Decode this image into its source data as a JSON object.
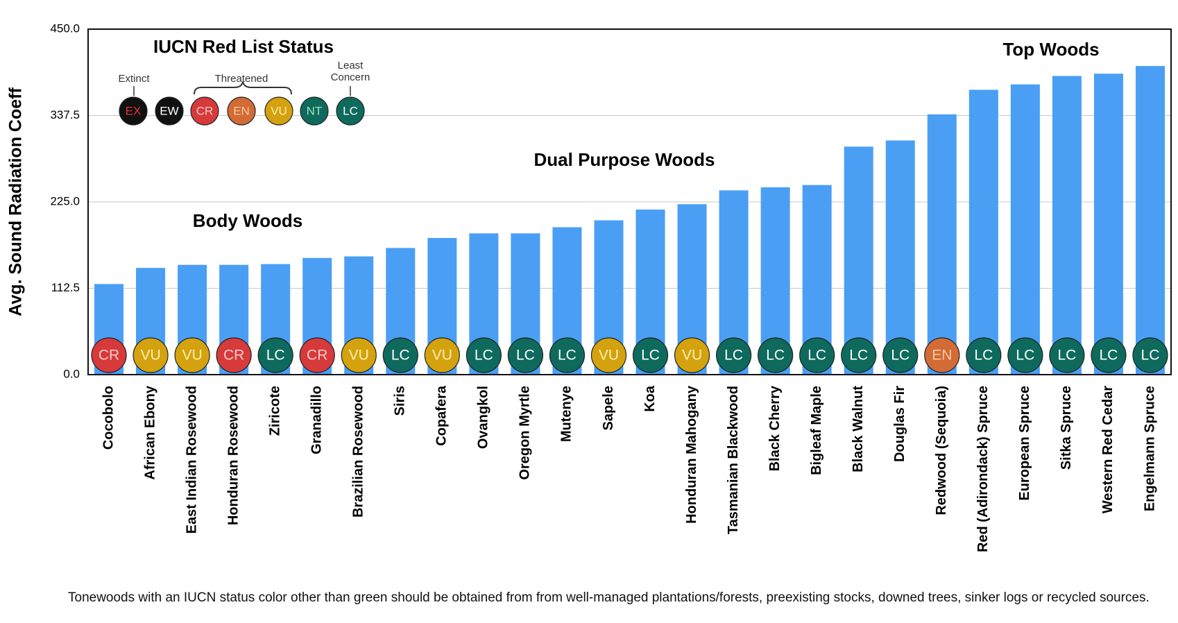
{
  "chart_data": {
    "type": "bar",
    "ylabel": "Avg. Sound Radiation Coeff",
    "categories": [
      "Cocobolo",
      "African Ebony",
      "East Indian Rosewood",
      "Honduran Rosewood",
      "Ziricote",
      "Granadillo",
      "Brazilian Rosewood",
      "Siris",
      "Copafera",
      "Ovangkol",
      "Oregon Myrtle",
      "Mutenye",
      "Sapele",
      "Koa",
      "Honduran Mahogany",
      "Tasmanian Blackwood",
      "Black Cherry",
      "Bigleaf Maple",
      "Black Walnut",
      "Douglas Fir",
      "Redwood (Sequoia)",
      "Red (Adirondack) Spruce",
      "European Spruce",
      "Sitka Spruce",
      "Western Red Cedar",
      "Engelmann Spruce"
    ],
    "values": [
      118,
      139,
      143,
      143,
      144,
      152,
      154,
      165,
      178,
      184,
      184,
      192,
      201,
      215,
      222,
      240,
      244,
      247,
      297,
      305,
      339,
      371,
      378,
      389,
      392,
      402
    ],
    "statuses": [
      "CR",
      "VU",
      "VU",
      "CR",
      "LC",
      "CR",
      "VU",
      "LC",
      "VU",
      "LC",
      "LC",
      "LC",
      "VU",
      "LC",
      "VU",
      "LC",
      "LC",
      "LC",
      "LC",
      "LC",
      "EN",
      "LC",
      "LC",
      "LC",
      "LC",
      "LC"
    ],
    "color": "#4a9ff5",
    "ylim": [
      0,
      450
    ],
    "yticks": [
      {
        "value": 0,
        "label": "0.0"
      },
      {
        "value": 112.5,
        "label": "112.5"
      },
      {
        "value": 225,
        "label": "225.0"
      },
      {
        "value": 337.5,
        "label": "337.5"
      },
      {
        "value": 450,
        "label": "450.0"
      }
    ],
    "grid": true,
    "status_colors": {
      "EX": {
        "fill": "#111111",
        "text": "#e0302e"
      },
      "EW": {
        "fill": "#111111",
        "text": "#ffffff"
      },
      "CR": {
        "fill": "#d63a3a",
        "text": "#f7c9c9"
      },
      "EN": {
        "fill": "#d26b36",
        "text": "#f7c9a0"
      },
      "VU": {
        "fill": "#d4a20f",
        "text": "#fbf0b0"
      },
      "NT": {
        "fill": "#0e6a5c",
        "text": "#9fe3b8"
      },
      "LC": {
        "fill": "#0e6a5c",
        "text": "#ffffff"
      }
    },
    "legend": {
      "title": "IUCN Red List Status",
      "groups": [
        "Extinct",
        "Threatened",
        "Least Concern"
      ],
      "codes": [
        "EX",
        "EW",
        "CR",
        "EN",
        "VU",
        "NT",
        "LC"
      ]
    },
    "annotations": [
      "Body Woods",
      "Dual Purpose Woods",
      "Top Woods"
    ],
    "footnote": "Tonewoods with an IUCN status color other than green should be obtained from from well-managed plantations/forests, preexisting stocks, downed trees, sinker logs or recycled sources."
  }
}
